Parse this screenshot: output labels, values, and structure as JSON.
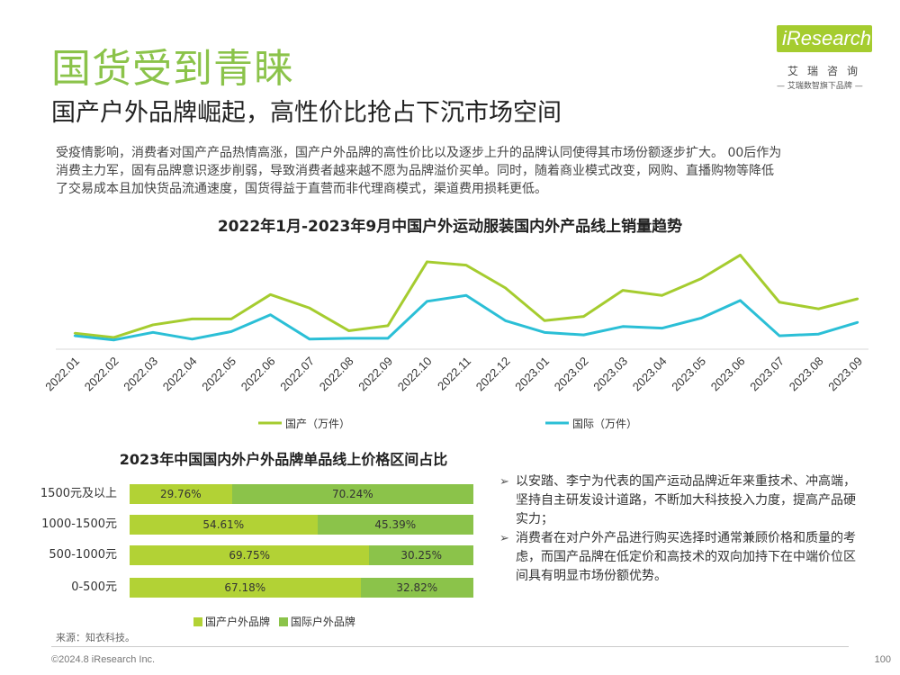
{
  "header": {
    "title": "国货受到青睐",
    "subtitle": "国产户外品牌崛起，高性价比抢占下沉市场空间"
  },
  "logo": {
    "brand": "iResearch",
    "cn_name": "艾瑞咨询",
    "slogan": "— 艾瑞数智旗下品牌 —"
  },
  "intro": {
    "lines": [
      "受疫情影响，消费者对国产产品热情高涨，国产户外品牌的高性价比以及逐步上升的品牌认同使得其市场份额逐步扩大。 00后作为",
      "消费主力军，固有品牌意识逐步削弱，导致消费者越来越不愿为品牌溢价买单。同时，随着商业模式改变，网购、直播购物等降低",
      "了交易成本且加快货品流通速度，国货得益于直营而非代理商模式，渠道费用损耗更低。"
    ]
  },
  "colors": {
    "brand_green": "#8bc34a",
    "domestic_line": "#a5cc2f",
    "international_line": "#2bbfd6",
    "bar_domestic": "#b2d235",
    "bar_international": "#8bc34a"
  },
  "chart_data": [
    {
      "type": "line",
      "title": "2022年1月-2023年9月中国户外运动服装国内外产品线上销量趋势",
      "categories": [
        "2022.01",
        "2022.02",
        "2022.03",
        "2022.04",
        "2022.05",
        "2022.06",
        "2022.07",
        "2022.08",
        "2022.09",
        "2022.10",
        "2022.11",
        "2022.12",
        "2023.01",
        "2023.02",
        "2023.03",
        "2023.04",
        "2023.05",
        "2023.06",
        "2023.07",
        "2023.08",
        "2023.09"
      ],
      "series": [
        {
          "name": "国产（万件）",
          "values": [
            19,
            14,
            29,
            36,
            36,
            65,
            49,
            22,
            28,
            104,
            100,
            73,
            34,
            39,
            70,
            64,
            84,
            112,
            56,
            48,
            60
          ]
        },
        {
          "name": "国际（万件）",
          "values": [
            16,
            11,
            20,
            12,
            21,
            41,
            12,
            13,
            13,
            57,
            64,
            34,
            20,
            17,
            27,
            25,
            37,
            58,
            16,
            18,
            32
          ]
        }
      ],
      "ylim": [
        0,
        120
      ],
      "grid": false,
      "legend": "bottom"
    },
    {
      "type": "bar",
      "orientation": "horizontal-stacked",
      "title": "2023年中国国内外户外品牌单品线上价格区间占比",
      "categories": [
        "1500元及以上",
        "1000-1500元",
        "500-1000元",
        "0-500元"
      ],
      "series": [
        {
          "name": "国产户外品牌",
          "values": [
            29.76,
            54.61,
            69.75,
            67.18
          ],
          "labels": [
            "29.76%",
            "54.61%",
            "69.75%",
            "67.18%"
          ]
        },
        {
          "name": "国际户外品牌",
          "values": [
            70.24,
            45.39,
            30.25,
            32.82
          ],
          "labels": [
            "70.24%",
            "45.39%",
            "30.25%",
            "32.82%"
          ]
        }
      ],
      "legend": "bottom"
    }
  ],
  "bullets": [
    {
      "marker": "➢",
      "text": "以安踏、李宁为代表的国产运动品牌近年来重技术、冲高端，坚持自主研发设计道路，不断加大科技投入力度，提高产品硬实力；"
    },
    {
      "marker": "➢",
      "text": "消费者在对户外产品进行购买选择时通常兼顾价格和质量的考虑，而国产品牌在低定价和高技术的双向加持下在中端价位区间具有明显市场份额优势。"
    }
  ],
  "source": "来源：知衣科技。",
  "footer": {
    "copyright": "©2024.8 iResearch Inc.",
    "page": "100"
  }
}
